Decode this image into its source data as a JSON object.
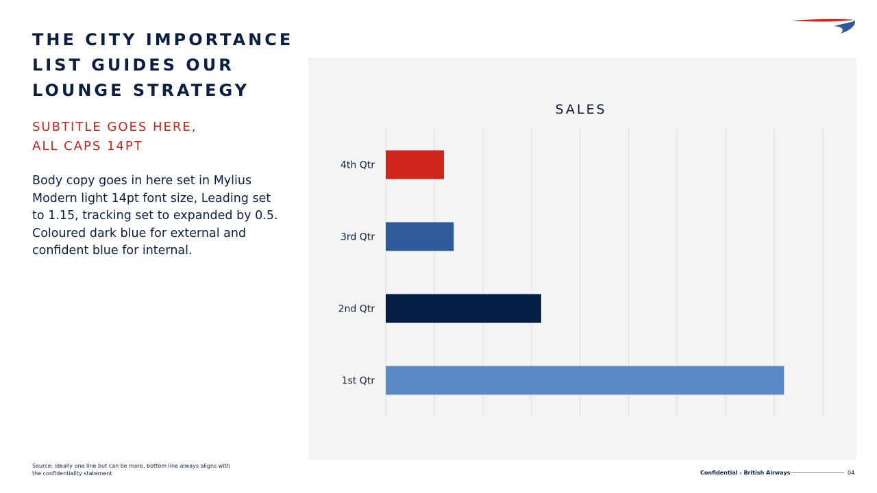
{
  "slide": {
    "title_lines": [
      "THE CITY IMPORTANCE",
      "LIST GUIDES OUR",
      "LOUNGE STRATEGY"
    ],
    "subtitle_lines": [
      "SUBTITLE GOES HERE,",
      "ALL CAPS 14PT"
    ],
    "body": "Body copy goes in here set in Mylius Modern light 14pt font size, Leading set to 1.15, tracking set to expanded by 0.5. Coloured dark blue for external and confident blue for internal.",
    "source": "Source: ideally one line but can be more, bottom line always aligns with the confidentiality statement",
    "confidential": "Confidential - British Airways",
    "page_number": "04",
    "logo_icon": "british-airways-speedmarque-icon",
    "colors": {
      "brand_dark_blue": "#0b1f44",
      "brand_red": "#c8261d",
      "panel_bg": "#f4f4f4"
    }
  },
  "chart_data": {
    "type": "bar",
    "orientation": "horizontal",
    "title": "SALES",
    "categories": [
      "1st Qtr",
      "2nd Qtr",
      "3rd Qtr",
      "4th Qtr"
    ],
    "values": [
      8.2,
      3.2,
      1.4,
      1.2
    ],
    "colors": [
      "#5b8ac8",
      "#031d43",
      "#2f5b9a",
      "#d0271d"
    ],
    "xlim": [
      0,
      9
    ],
    "grid": true,
    "legend": "none"
  }
}
